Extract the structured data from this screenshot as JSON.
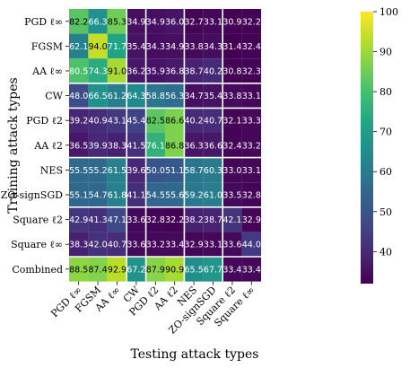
{
  "chart_data": {
    "type": "heatmap",
    "title": "",
    "xlabel": "Testing attack types",
    "ylabel": "Training attack types",
    "x_labels": [
      "PGD ℓ∞",
      "FGSM",
      "AA ℓ∞",
      "CW",
      "PGD ℓ2",
      "AA ℓ2",
      "NES",
      "ZO-signSGD",
      "Square ℓ2",
      "Square ℓ∞"
    ],
    "y_labels": [
      "PGD ℓ∞",
      "FGSM",
      "AA ℓ∞",
      "CW",
      "PGD ℓ2",
      "AA ℓ2",
      "NES",
      "ZO-signSGD",
      "Square ℓ2",
      "Square ℓ∞",
      "Combined"
    ],
    "values": [
      [
        82.2,
        66.3,
        85.3,
        34.9,
        34.9,
        36.0,
        32.7,
        33.1,
        30.9,
        32.2
      ],
      [
        62.1,
        94.0,
        71.7,
        35.4,
        34.3,
        34.9,
        33.8,
        34.3,
        31.4,
        32.4
      ],
      [
        80.5,
        74.3,
        91.0,
        36.2,
        35.9,
        36.8,
        38.7,
        40.2,
        30.8,
        32.3
      ],
      [
        48.0,
        66.5,
        61.2,
        64.3,
        58.8,
        56.3,
        34.7,
        35.4,
        33.8,
        33.1
      ],
      [
        39.2,
        40.9,
        43.1,
        45.4,
        82.5,
        86.6,
        40.2,
        40.7,
        32.1,
        33.3
      ],
      [
        36.5,
        39.9,
        38.3,
        41.5,
        76.1,
        86.8,
        36.3,
        36.6,
        32.4,
        33.2
      ],
      [
        55.5,
        55.2,
        61.5,
        39.6,
        50.0,
        51.1,
        58.7,
        60.3,
        33.0,
        33.1
      ],
      [
        55.1,
        54.7,
        61.8,
        41.1,
        54.5,
        55.6,
        59.2,
        61.0,
        33.5,
        32.8
      ],
      [
        42.9,
        41.3,
        47.1,
        33.6,
        32.8,
        32.2,
        38.2,
        38.7,
        42.1,
        32.9
      ],
      [
        38.3,
        42.0,
        40.7,
        33.6,
        33.2,
        33.4,
        32.9,
        33.1,
        33.6,
        44.0
      ],
      [
        88.5,
        87.4,
        92.9,
        67.2,
        87.9,
        90.9,
        65.5,
        67.7,
        33.4,
        33.4
      ]
    ],
    "colorbar": {
      "colormap": "viridis",
      "range": [
        32,
        100
      ],
      "ticks": [
        40,
        50,
        60,
        70,
        80,
        90,
        100
      ]
    },
    "grid": false
  }
}
